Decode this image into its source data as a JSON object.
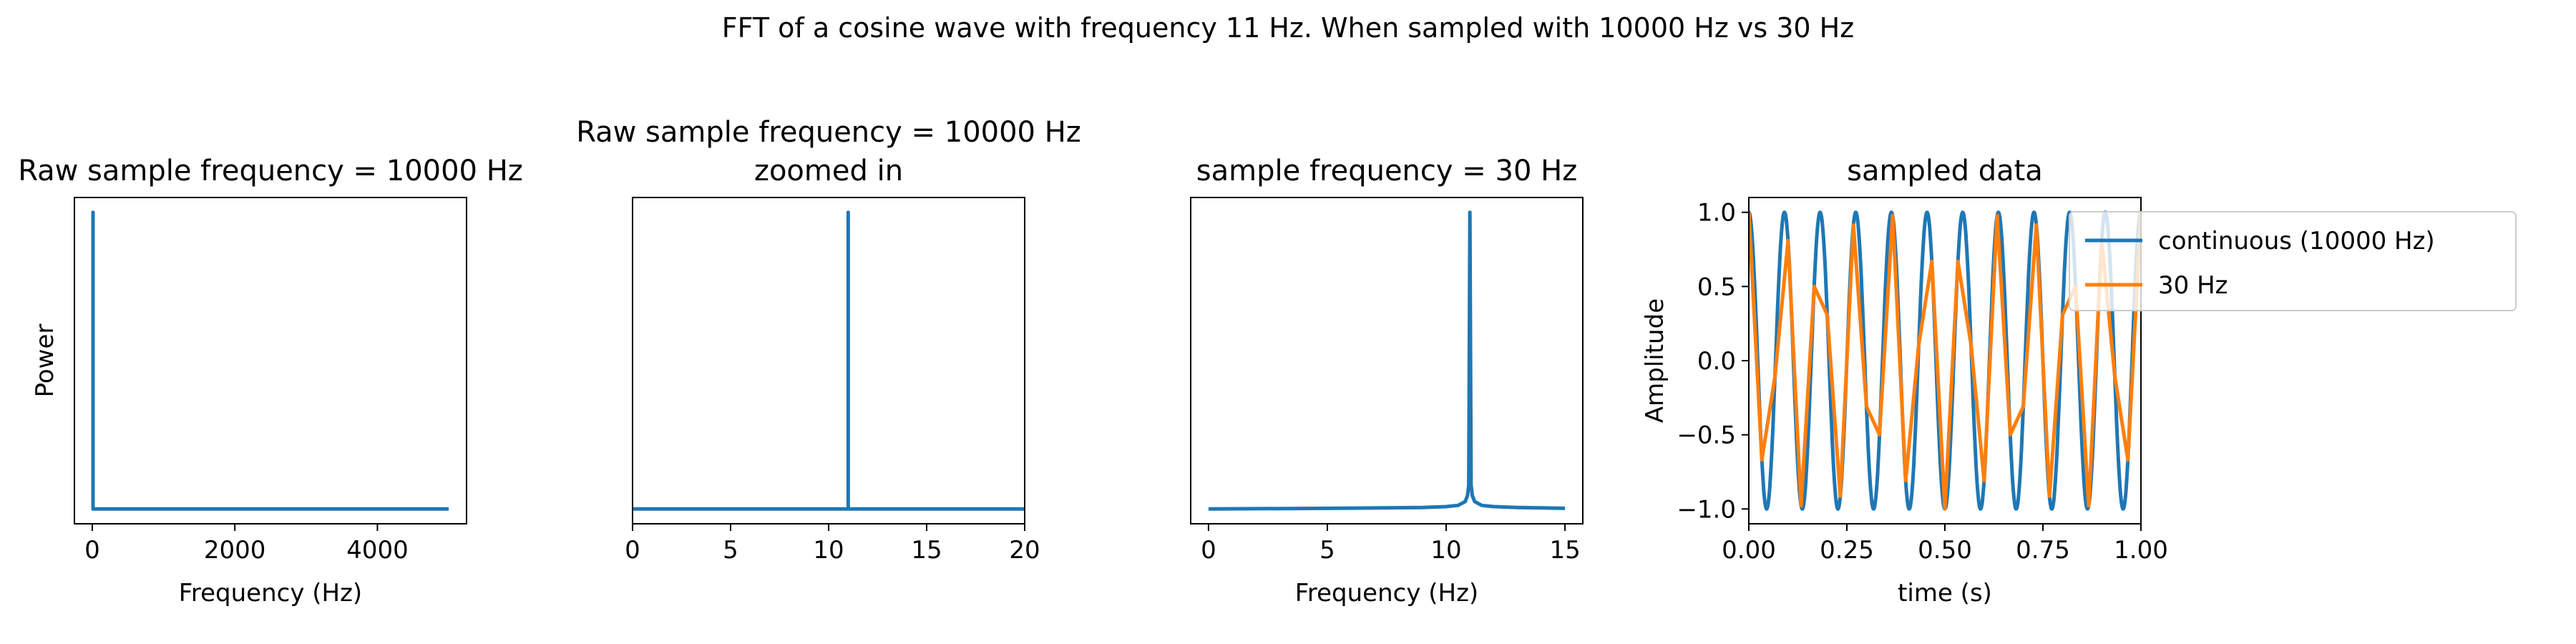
{
  "figure": {
    "suptitle": "FFT of a cosine wave with frequency 11 Hz. When sampled with 10000 Hz vs 30 Hz"
  },
  "colors": {
    "series_blue": "#1f77b4",
    "series_orange": "#ff7f0e"
  },
  "chart_data": [
    {
      "type": "line",
      "title": "Raw sample frequency = 10000 Hz",
      "xlabel": "Frequency (Hz)",
      "ylabel": "Power",
      "xlim": [
        -250,
        5250
      ],
      "ylim": [
        -0.05,
        1.05
      ],
      "xticks": [
        0,
        2000,
        4000
      ],
      "yticks": [],
      "grid": false,
      "series": [
        {
          "x": [
            0,
            11,
            11,
            11,
            5000
          ],
          "y": [
            0,
            0,
            1,
            0,
            0
          ]
        }
      ]
    },
    {
      "type": "line",
      "title": "Raw sample frequency = 10000 Hz\nzoomed in",
      "xlabel": "",
      "ylabel": "",
      "xlim": [
        0,
        20
      ],
      "ylim": [
        -0.05,
        1.05
      ],
      "xticks": [
        0,
        5,
        10,
        15,
        20
      ],
      "yticks": [],
      "grid": false,
      "series": [
        {
          "x": [
            0,
            10.9,
            11,
            11,
            11,
            11.1,
            20
          ],
          "y": [
            0,
            0,
            0,
            1,
            0,
            0,
            0
          ]
        }
      ]
    },
    {
      "type": "line",
      "title": "sample frequency = 30 Hz",
      "xlabel": "Frequency (Hz)",
      "ylabel": "",
      "xlim": [
        -0.75,
        15.75
      ],
      "ylim": [
        -0.05,
        1.05
      ],
      "xticks": [
        0,
        5,
        10,
        15
      ],
      "yticks": [],
      "grid": false,
      "series": [
        {
          "x": [
            0,
            5,
            9,
            10,
            10.5,
            10.8,
            10.9,
            10.95,
            11,
            11.05,
            11.1,
            11.2,
            11.5,
            12,
            13,
            15
          ],
          "y": [
            0,
            0.002,
            0.005,
            0.008,
            0.012,
            0.025,
            0.045,
            0.08,
            1,
            0.08,
            0.045,
            0.025,
            0.012,
            0.008,
            0.005,
            0.002
          ]
        }
      ]
    },
    {
      "type": "line",
      "title": "sampled data",
      "xlabel": "time (s)",
      "ylabel": "Amplitude",
      "xlim": [
        0,
        1
      ],
      "ylim": [
        -1.1,
        1.1
      ],
      "xticks": [
        0,
        0.25,
        0.5,
        0.75,
        1
      ],
      "xtick_labels": [
        "0.00",
        "0.25",
        "0.50",
        "0.75",
        "1.00"
      ],
      "yticks": [
        -1,
        -0.5,
        0,
        0.5,
        1
      ],
      "ytick_labels": [
        "−1.0",
        "−0.5",
        "0.0",
        "0.5",
        "1.0"
      ],
      "grid": false,
      "legend": {
        "position": "upper right",
        "entries": [
          "continuous (10000 Hz)",
          "30 Hz"
        ]
      },
      "series": [
        {
          "name": "continuous (10000 Hz)",
          "function": "cos(2*pi*11*t)",
          "t_start": 0,
          "t_end": 1
        },
        {
          "name": "30 Hz",
          "t": [
            0.0,
            0.0333,
            0.0667,
            0.1,
            0.1333,
            0.1667,
            0.2,
            0.2333,
            0.2667,
            0.3,
            0.3333,
            0.3667,
            0.4,
            0.4333,
            0.4667,
            0.5,
            0.5333,
            0.5667,
            0.6,
            0.6333,
            0.6667,
            0.7,
            0.7333,
            0.7667,
            0.8,
            0.8333,
            0.8667,
            0.9,
            0.9333,
            0.9667,
            1.0
          ],
          "y": [
            1.0,
            -0.669,
            -0.105,
            0.809,
            -0.978,
            0.5,
            0.309,
            -0.914,
            0.914,
            -0.309,
            -0.5,
            0.978,
            -0.809,
            0.105,
            0.669,
            -1.0,
            0.669,
            0.105,
            -0.809,
            0.978,
            -0.5,
            -0.309,
            0.914,
            -0.914,
            0.309,
            0.5,
            -0.978,
            0.809,
            -0.105,
            -0.669,
            1.0
          ]
        }
      ]
    }
  ]
}
